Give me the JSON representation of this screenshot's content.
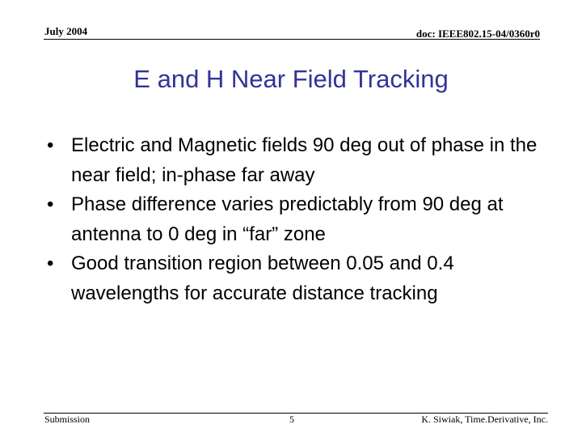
{
  "header": {
    "date": "July 2004",
    "doc_id": "doc: IEEE802.15-04/0360r0"
  },
  "title": "E and H Near Field Tracking",
  "bullets": [
    {
      "marker": "•",
      "text": "Electric and Magnetic fields 90 deg out of phase in the near field; in-phase far away"
    },
    {
      "marker": "•",
      "text": "Phase difference varies predictably from 90 deg at antenna to 0 deg in “far” zone"
    },
    {
      "marker": "•",
      "text": "Good transition region between 0.05 and 0.4 wavelengths for accurate distance tracking"
    }
  ],
  "footer": {
    "left": "Submission",
    "page": "5",
    "author": "K. Siwiak, Time.Derivative, Inc."
  },
  "colors": {
    "title": "#333399",
    "text": "#000000",
    "background": "#ffffff"
  }
}
